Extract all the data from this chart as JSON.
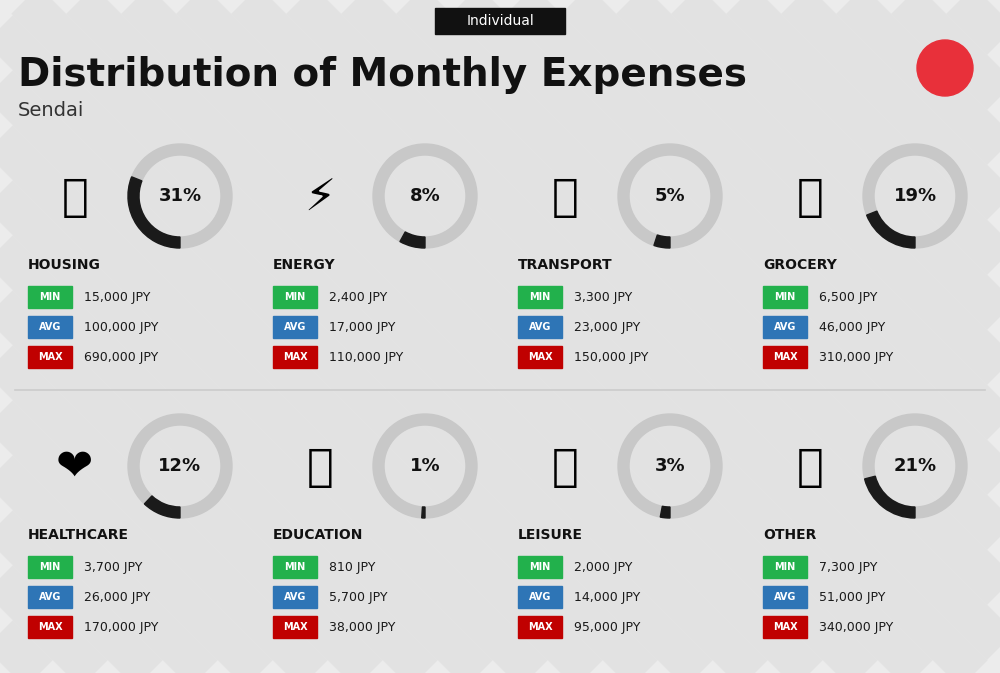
{
  "title": "Distribution of Monthly Expenses",
  "subtitle": "Sendai",
  "tag": "Individual",
  "bg_color": "#ececec",
  "categories": [
    {
      "name": "HOUSING",
      "pct": 31,
      "min": "15,000 JPY",
      "avg": "100,000 JPY",
      "max": "690,000 JPY",
      "row": 0,
      "col": 0
    },
    {
      "name": "ENERGY",
      "pct": 8,
      "min": "2,400 JPY",
      "avg": "17,000 JPY",
      "max": "110,000 JPY",
      "row": 0,
      "col": 1
    },
    {
      "name": "TRANSPORT",
      "pct": 5,
      "min": "3,300 JPY",
      "avg": "23,000 JPY",
      "max": "150,000 JPY",
      "row": 0,
      "col": 2
    },
    {
      "name": "GROCERY",
      "pct": 19,
      "min": "6,500 JPY",
      "avg": "46,000 JPY",
      "max": "310,000 JPY",
      "row": 0,
      "col": 3
    },
    {
      "name": "HEALTHCARE",
      "pct": 12,
      "min": "3,700 JPY",
      "avg": "26,000 JPY",
      "max": "170,000 JPY",
      "row": 1,
      "col": 0
    },
    {
      "name": "EDUCATION",
      "pct": 1,
      "min": "810 JPY",
      "avg": "5,700 JPY",
      "max": "38,000 JPY",
      "row": 1,
      "col": 1
    },
    {
      "name": "LEISURE",
      "pct": 3,
      "min": "2,000 JPY",
      "avg": "14,000 JPY",
      "max": "95,000 JPY",
      "row": 1,
      "col": 2
    },
    {
      "name": "OTHER",
      "pct": 21,
      "min": "7,300 JPY",
      "avg": "51,000 JPY",
      "max": "340,000 JPY",
      "row": 1,
      "col": 3
    }
  ],
  "icons": [
    "🏢",
    "⚡🏠",
    "🚌🚗",
    "🛒",
    "❤️",
    "🎓",
    "🛍️",
    "👜"
  ],
  "icon_labels": [
    "HOUSING",
    "ENERGY",
    "TRANSPORT",
    "GROCERY",
    "HEALTHCARE",
    "EDUCATION",
    "LEISURE",
    "OTHER"
  ],
  "min_color": "#22b14c",
  "avg_color": "#2e75b6",
  "max_color": "#c00000",
  "label_text_color": "#ffffff",
  "ring_dark_color": "#1a1a1a",
  "ring_bg_color": "#c8c8c8",
  "red_dot_color": "#e8303a",
  "stripe_color": "#d8d8d8",
  "title_fontsize": 28,
  "subtitle_fontsize": 14,
  "tag_fontsize": 10,
  "cat_name_fontsize": 10,
  "pct_fontsize": 13,
  "label_fontsize": 7,
  "value_fontsize": 9
}
